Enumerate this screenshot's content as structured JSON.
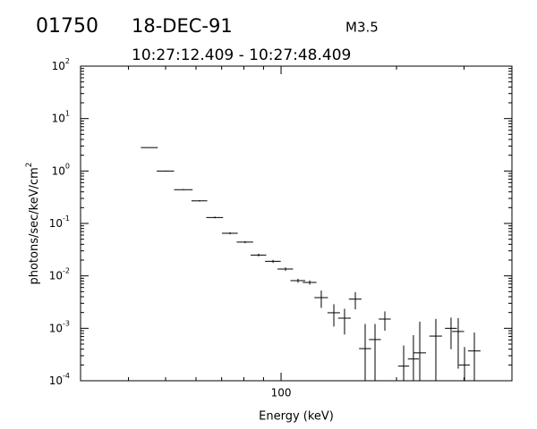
{
  "chart_data": {
    "type": "errorbar",
    "header": {
      "id": "01750",
      "date": "18-DEC-91",
      "class": "M3.5",
      "time_range": "10:27:12.409 - 10:27:48.409"
    },
    "xlabel": "Energy (keV)",
    "ylabel": {
      "text": "photons/sec/keV/cm",
      "sup": "2"
    },
    "xlog": true,
    "ylog": true,
    "xlim": [
      30,
      400
    ],
    "ylim": [
      0.0001,
      100
    ],
    "xticks": [
      100
    ],
    "xminor": [
      40,
      50,
      60,
      70,
      80,
      90,
      200,
      300,
      400
    ],
    "yticks": [
      {
        "value": 0.0001,
        "label": "10",
        "exponent": "-4"
      },
      {
        "value": 0.001,
        "label": "10",
        "exponent": "-3"
      },
      {
        "value": 0.01,
        "label": "10",
        "exponent": "-2"
      },
      {
        "value": 0.1,
        "label": "10",
        "exponent": "-1"
      },
      {
        "value": 1,
        "label": "10",
        "exponent": "0"
      },
      {
        "value": 10,
        "label": "10",
        "exponent": "1"
      },
      {
        "value": 100,
        "label": "10",
        "exponent": "2"
      }
    ],
    "yminor": [
      0.0002,
      0.0003,
      0.0004,
      0.0005,
      0.0006,
      0.0007,
      0.0008,
      0.0009,
      0.002,
      0.003,
      0.004,
      0.005,
      0.006,
      0.007,
      0.008,
      0.009,
      0.02,
      0.03,
      0.04,
      0.05,
      0.06,
      0.07,
      0.08,
      0.09,
      0.2,
      0.3,
      0.4,
      0.5,
      0.6,
      0.7,
      0.8,
      0.9,
      2,
      3,
      4,
      5,
      6,
      7,
      8,
      9,
      20,
      30,
      40,
      50,
      60,
      70,
      80,
      90
    ],
    "color": "#000000",
    "x": [
      45.4,
      50.0,
      55.7,
      61.3,
      67.2,
      73.6,
      80.6,
      87.4,
      95.3,
      102.7,
      110.7,
      118.8,
      127.3,
      137.3,
      146.4,
      156.2,
      165.7,
      175.8,
      186.5,
      208.8,
      221.4,
      230.0,
      253.3,
      277.5,
      289.7,
      300.9,
      319.2
    ],
    "xerr": [
      2.3,
      2.6,
      3.1,
      2.9,
      3.4,
      3.5,
      4.0,
      4.1,
      4.5,
      4.8,
      4.9,
      4.9,
      5.2,
      5.2,
      5.6,
      5.9,
      6.0,
      6.3,
      6.7,
      6.9,
      7.3,
      8.7,
      9.6,
      10.0,
      10.4,
      10.0,
      12.0
    ],
    "values": [
      2.8,
      1.0,
      0.44,
      0.27,
      0.13,
      0.065,
      0.044,
      0.025,
      0.019,
      0.0135,
      0.0081,
      0.0075,
      0.00385,
      0.00198,
      0.00156,
      0.0036,
      0.00041,
      0.00061,
      0.0015,
      0.00019,
      0.00026,
      0.00034,
      0.00071,
      0.001,
      0.00087,
      0.0002,
      0.00037
    ],
    "errors": [
      0.05,
      0.02,
      0.01,
      0.008,
      0.005,
      0.003,
      0.002,
      0.0015,
      0.0012,
      0.001,
      0.0007,
      0.0007,
      0.0014,
      0.0009,
      0.0008,
      0.0013,
      0.0008,
      0.0006,
      0.0006,
      0.00028,
      0.00048,
      0.001,
      0.0008,
      0.0006,
      0.0007,
      0.00024,
      0.00046
    ]
  }
}
